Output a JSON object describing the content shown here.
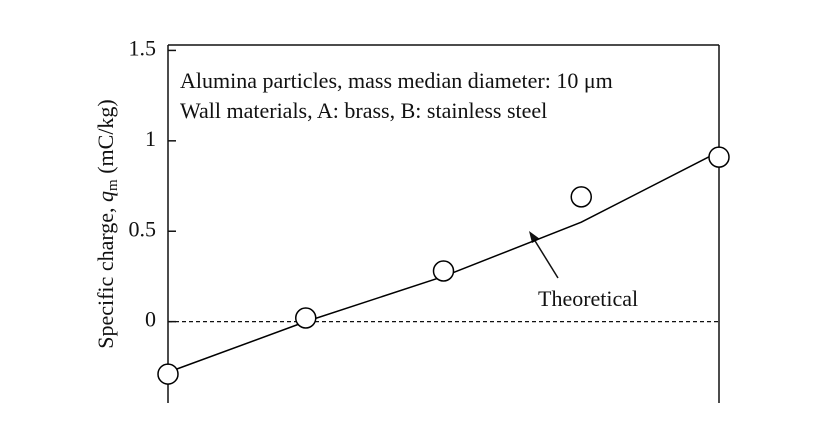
{
  "chart_data": {
    "type": "line",
    "y_label": [
      "Specific charge, ",
      "q",
      "m",
      " (mC/kg)"
    ],
    "annotations": [
      "Alumina particles, mass median diameter: 10 μm",
      "Wall materials, A: brass, B: stainless steel"
    ],
    "categories": [
      null,
      null,
      null,
      null,
      null
    ],
    "series": [
      {
        "name": "Theoretical",
        "color": "#000000",
        "values": [
          -0.28,
          0.0,
          0.25,
          0.55,
          0.94
        ]
      },
      {
        "color": "#000000",
        "marker": "circle",
        "values": [
          -0.29,
          0.02,
          0.28,
          0.69,
          0.91
        ]
      }
    ],
    "reference_line": 0,
    "ylim": [
      -0.45,
      1.53
    ],
    "yticks": [
      {
        "value": 1.5,
        "label": "1.5"
      },
      1,
      0.5,
      0
    ]
  }
}
